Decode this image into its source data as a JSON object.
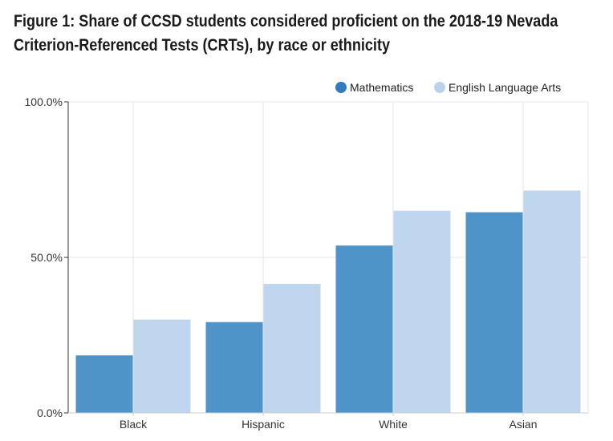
{
  "title_lines": [
    "Figure 1: Share of CCSD students considered proficient on the 2018-19 Nevada",
    "Criterion-Referenced Tests (CRTs), by race or ethnicity"
  ],
  "chart_data": {
    "type": "bar",
    "title": "Figure 1: Share of CCSD students considered proficient on the 2018-19 Nevada Criterion-Referenced Tests (CRTs), by race or ethnicity",
    "categories": [
      "Black",
      "Hispanic",
      "White",
      "Asian"
    ],
    "series": [
      {
        "name": "Mathematics",
        "color": "#4f94c9",
        "values": [
          18.5,
          29.2,
          53.8,
          64.5
        ]
      },
      {
        "name": "English Language Arts",
        "color": "#c0d5ee",
        "values": [
          30.0,
          41.5,
          65.0,
          71.5
        ]
      }
    ],
    "yticks": [
      "0.0%",
      "50.0%",
      "100.0%"
    ],
    "ytick_values": [
      0,
      50,
      100
    ],
    "ylim": [
      0,
      100
    ],
    "grid": true,
    "legend_position": "top-right",
    "legend_marker_colors": [
      "#2f7dc0",
      "#bcd2ec"
    ]
  }
}
